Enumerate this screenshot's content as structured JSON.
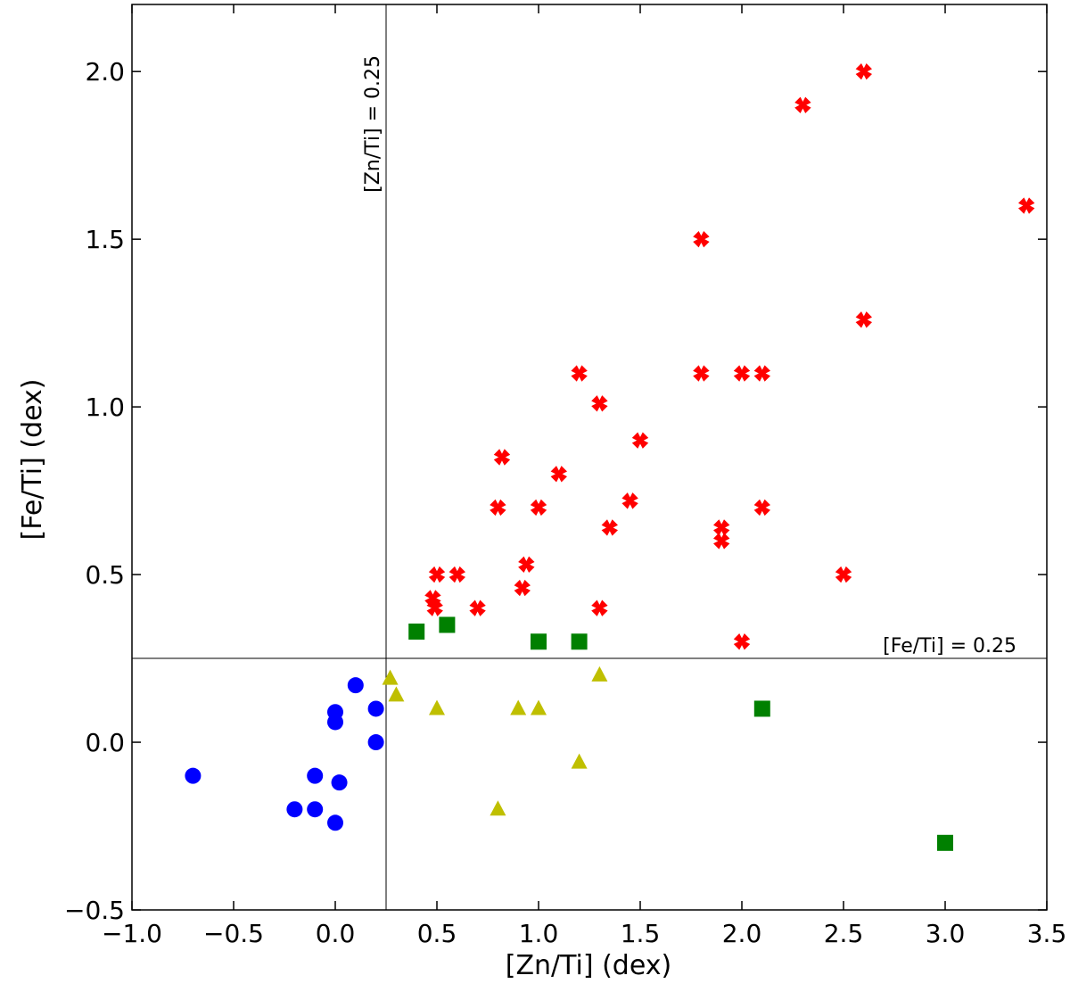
{
  "chart_data": {
    "type": "scatter",
    "title": "",
    "xlabel": "[Zn/Ti] (dex)",
    "ylabel": "[Fe/Ti] (dex)",
    "xlim": [
      -1.0,
      3.5
    ],
    "ylim": [
      -0.5,
      2.2
    ],
    "xticks": [
      -1.0,
      -0.5,
      0.0,
      0.5,
      1.0,
      1.5,
      2.0,
      2.5,
      3.0,
      3.5
    ],
    "xtick_labels": [
      "−1.0",
      "−0.5",
      "0.0",
      "0.5",
      "1.0",
      "1.5",
      "2.0",
      "2.5",
      "3.0",
      "3.5"
    ],
    "yticks": [
      -0.5,
      0.0,
      0.5,
      1.0,
      1.5,
      2.0
    ],
    "ytick_labels": [
      "−0.5",
      "0.0",
      "0.5",
      "1.0",
      "1.5",
      "2.0"
    ],
    "grid": false,
    "reference_lines": [
      {
        "orientation": "vertical",
        "value": 0.25,
        "label": "[Zn/Ti] = 0.25"
      },
      {
        "orientation": "horizontal",
        "value": 0.25,
        "label": "[Fe/Ti] = 0.25"
      }
    ],
    "series": [
      {
        "name": "blue circles",
        "marker": "circle",
        "color": "#0000ff",
        "points": [
          [
            -0.7,
            -0.1
          ],
          [
            -0.2,
            -0.2
          ],
          [
            -0.1,
            -0.2
          ],
          [
            -0.1,
            -0.1
          ],
          [
            0.0,
            -0.24
          ],
          [
            0.02,
            -0.12
          ],
          [
            0.0,
            0.09
          ],
          [
            0.0,
            0.06
          ],
          [
            0.1,
            0.17
          ],
          [
            0.2,
            0.1
          ],
          [
            0.2,
            0.0
          ]
        ]
      },
      {
        "name": "yellow triangles",
        "marker": "triangle",
        "color": "#bfbf00",
        "points": [
          [
            0.27,
            0.19
          ],
          [
            0.3,
            0.14
          ],
          [
            0.5,
            0.1
          ],
          [
            0.8,
            -0.2
          ],
          [
            0.9,
            0.1
          ],
          [
            1.0,
            0.1
          ],
          [
            1.2,
            -0.06
          ],
          [
            1.3,
            0.2
          ]
        ]
      },
      {
        "name": "green squares",
        "marker": "square",
        "color": "#008000",
        "points": [
          [
            0.4,
            0.33
          ],
          [
            0.55,
            0.35
          ],
          [
            1.0,
            0.3
          ],
          [
            1.2,
            0.3
          ],
          [
            2.1,
            0.1
          ],
          [
            3.0,
            -0.3
          ]
        ]
      },
      {
        "name": "red crosses",
        "marker": "x",
        "color": "#ff0000",
        "points": [
          [
            0.48,
            0.43
          ],
          [
            0.49,
            0.4
          ],
          [
            0.5,
            0.5
          ],
          [
            0.6,
            0.5
          ],
          [
            0.7,
            0.4
          ],
          [
            0.8,
            0.7
          ],
          [
            0.82,
            0.85
          ],
          [
            0.92,
            0.46
          ],
          [
            0.94,
            0.53
          ],
          [
            1.0,
            0.7
          ],
          [
            1.1,
            0.8
          ],
          [
            1.2,
            1.1
          ],
          [
            1.3,
            1.01
          ],
          [
            1.3,
            0.4
          ],
          [
            1.35,
            0.64
          ],
          [
            1.45,
            0.72
          ],
          [
            1.5,
            0.9
          ],
          [
            1.8,
            1.5
          ],
          [
            1.8,
            1.1
          ],
          [
            1.9,
            0.64
          ],
          [
            1.9,
            0.6
          ],
          [
            2.0,
            1.1
          ],
          [
            2.0,
            0.3
          ],
          [
            2.1,
            1.1
          ],
          [
            2.1,
            0.7
          ],
          [
            2.3,
            1.9
          ],
          [
            2.5,
            0.5
          ],
          [
            2.6,
            2.0
          ],
          [
            2.6,
            1.26
          ],
          [
            3.4,
            1.6
          ]
        ]
      }
    ]
  }
}
